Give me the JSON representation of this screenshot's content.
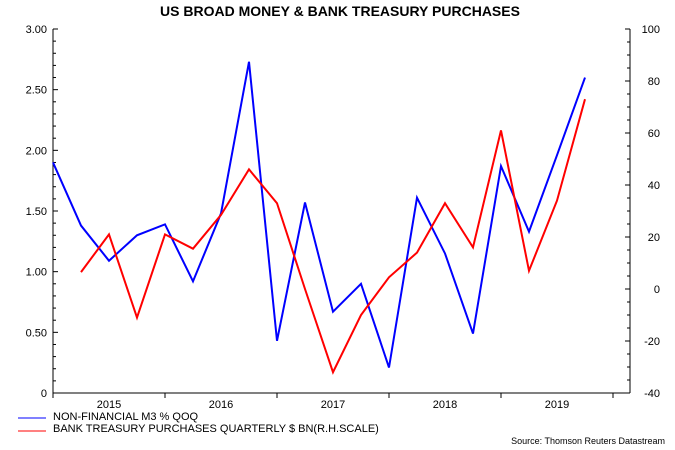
{
  "chart_data": {
    "type": "line",
    "title": "US BROAD MONEY & BANK TREASURY PURCHASES",
    "source": "Source: Thomson Reuters Datastream",
    "x_tick_labels": [
      "2015",
      "2016",
      "2017",
      "2018",
      "2019"
    ],
    "left_axis": {
      "ylim": [
        0,
        3
      ],
      "tick_labels": [
        "0",
        "0.50",
        "1.00",
        "1.50",
        "2.00",
        "2.50",
        "3.00"
      ]
    },
    "right_axis": {
      "ylim": [
        -40,
        100
      ],
      "tick_labels": [
        "-40",
        "-20",
        "0",
        "20",
        "40",
        "60",
        "80",
        "100"
      ]
    },
    "legend_placement": "bottom-left",
    "series": [
      {
        "name": "NON-FINANCIAL M3 % QOQ",
        "color": "#0000ff",
        "axis": "left",
        "start_quarter_index": 0,
        "values": [
          1.9,
          1.38,
          1.09,
          1.3,
          1.39,
          0.92,
          1.48,
          2.73,
          0.43,
          1.57,
          0.67,
          0.9,
          0.21,
          1.61,
          1.15,
          0.49,
          1.87,
          1.33,
          1.96,
          2.6
        ]
      },
      {
        "name": "BANK TREASURY PURCHASES QUARTERLY $ BN(R.H.SCALE)",
        "color": "#ff0000",
        "axis": "right",
        "start_quarter_index": 1,
        "values": [
          6.5,
          21,
          -11,
          21,
          15.5,
          28.5,
          46,
          33,
          0,
          -32,
          -10,
          4.5,
          14,
          33,
          16,
          61,
          7,
          34,
          73
        ]
      }
    ]
  }
}
